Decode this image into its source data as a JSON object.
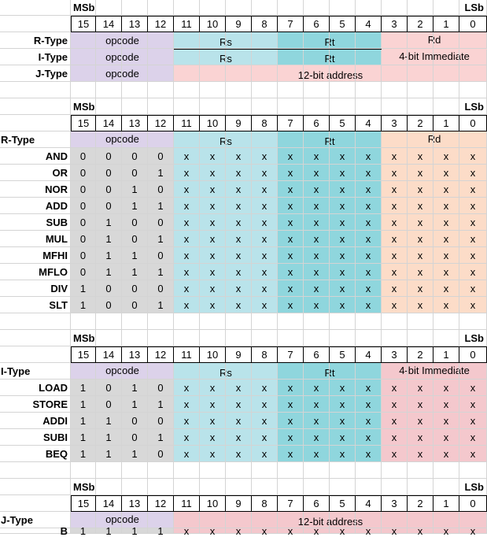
{
  "colors": {
    "opcode": "#dcd2ea",
    "rs": "#b9e3ea",
    "rt": "#8fd6dd",
    "rd_summary": "#fad3d3",
    "rd_rtype": "#fcdcc8",
    "imm_itype": "#f4c8cd",
    "addr_jtype": "#f4c8cd",
    "opcode_bits": "#d8d8d8",
    "grid": "#d4d4d4"
  },
  "msb_label": "MSb",
  "lsb_label": "LSb",
  "bit_numbers": [
    "15",
    "14",
    "13",
    "12",
    "11",
    "10",
    "9",
    "8",
    "7",
    "6",
    "5",
    "4",
    "3",
    "2",
    "1",
    "0"
  ],
  "summary": {
    "rows": [
      {
        "label": "R-Type",
        "opcode": "opcode",
        "rs": "Rs",
        "rt": "Rt",
        "rd": "Rd"
      },
      {
        "label": "I-Type",
        "opcode": "opcode",
        "rs": "Rs",
        "rt": "Rt",
        "imm": "4-bit Immediate"
      },
      {
        "label": "J-Type",
        "opcode": "opcode",
        "addr": "12-bit address"
      }
    ]
  },
  "rtype": {
    "title": "R-Type",
    "opcode": "opcode",
    "rs": "Rs",
    "rt": "Rt",
    "rd": "Rd",
    "dont_care": "x",
    "instructions": [
      {
        "name": "AND",
        "bits": [
          "0",
          "0",
          "0",
          "0"
        ]
      },
      {
        "name": "OR",
        "bits": [
          "0",
          "0",
          "0",
          "1"
        ]
      },
      {
        "name": "NOR",
        "bits": [
          "0",
          "0",
          "1",
          "0"
        ]
      },
      {
        "name": "ADD",
        "bits": [
          "0",
          "0",
          "1",
          "1"
        ]
      },
      {
        "name": "SUB",
        "bits": [
          "0",
          "1",
          "0",
          "0"
        ]
      },
      {
        "name": "MUL",
        "bits": [
          "0",
          "1",
          "0",
          "1"
        ]
      },
      {
        "name": "MFHI",
        "bits": [
          "0",
          "1",
          "1",
          "0"
        ]
      },
      {
        "name": "MFLO",
        "bits": [
          "0",
          "1",
          "1",
          "1"
        ]
      },
      {
        "name": "DIV",
        "bits": [
          "1",
          "0",
          "0",
          "0"
        ]
      },
      {
        "name": "SLT",
        "bits": [
          "1",
          "0",
          "0",
          "1"
        ]
      }
    ]
  },
  "itype": {
    "title": "I-Type",
    "opcode": "opcode",
    "rs": "Rs",
    "rt": "Rt",
    "imm": "4-bit Immediate",
    "dont_care": "x",
    "instructions": [
      {
        "name": "LOAD",
        "bits": [
          "1",
          "0",
          "1",
          "0"
        ]
      },
      {
        "name": "STORE",
        "bits": [
          "1",
          "0",
          "1",
          "1"
        ]
      },
      {
        "name": "ADDI",
        "bits": [
          "1",
          "1",
          "0",
          "0"
        ]
      },
      {
        "name": "SUBI",
        "bits": [
          "1",
          "1",
          "0",
          "1"
        ]
      },
      {
        "name": "BEQ",
        "bits": [
          "1",
          "1",
          "1",
          "0"
        ]
      }
    ]
  },
  "jtype": {
    "title": "J-Type",
    "opcode": "opcode",
    "addr": "12-bit address",
    "dont_care": "x",
    "instructions": [
      {
        "name": "B",
        "bits": [
          "1",
          "1",
          "1",
          "1"
        ]
      }
    ]
  }
}
